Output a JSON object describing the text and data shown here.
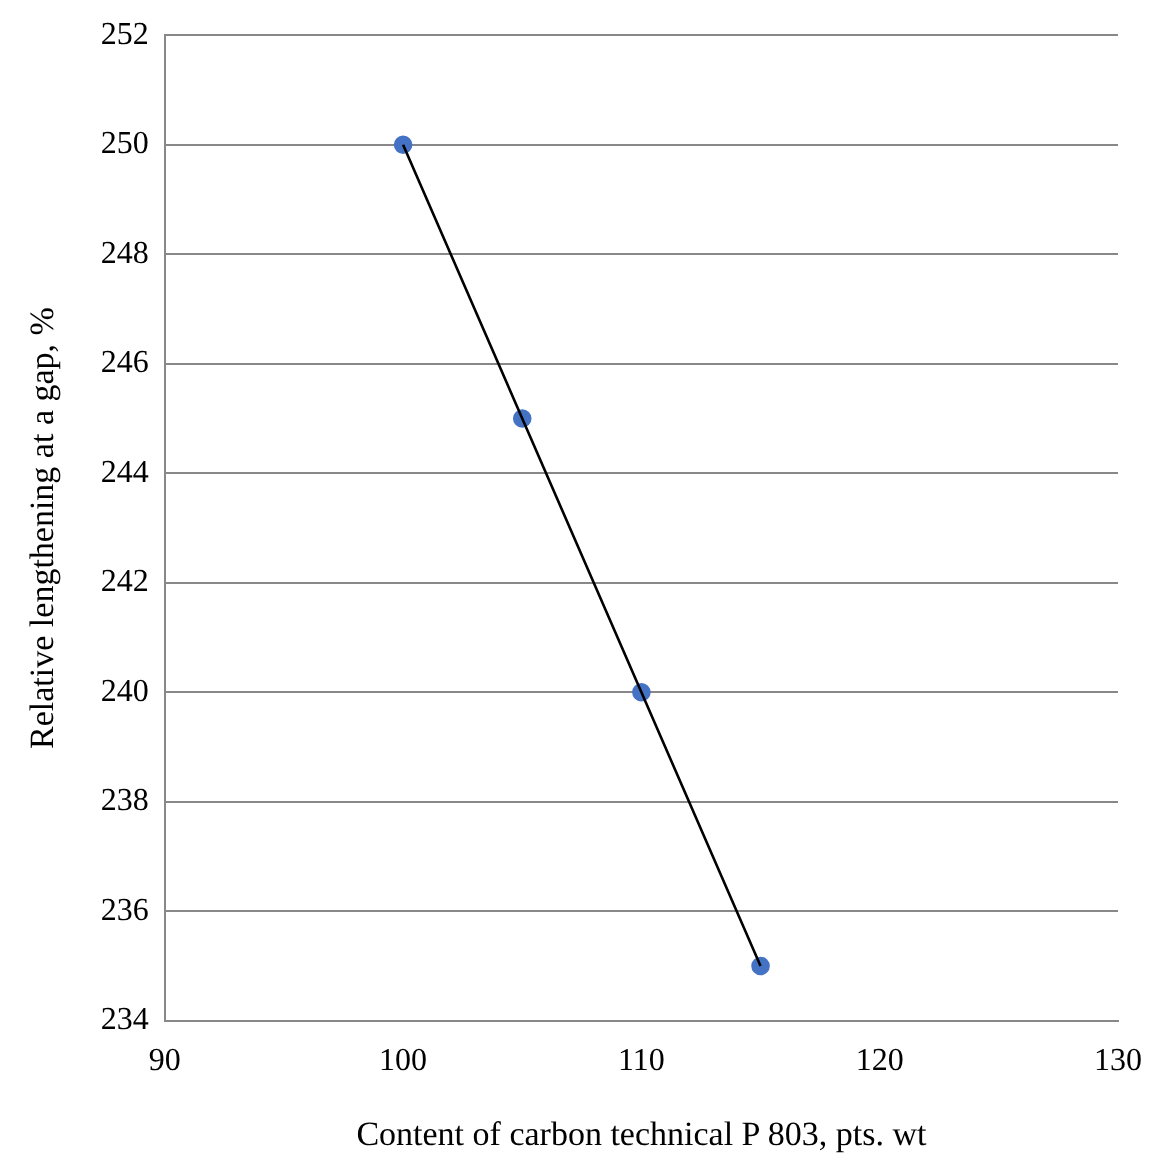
{
  "chart_data": {
    "type": "line",
    "xlabel": "Content of carbon technical P 803, pts. wt",
    "ylabel": "Relative lengthening at a gap, %",
    "x": [
      100,
      105,
      110,
      115
    ],
    "series": [
      {
        "type": "line",
        "color": "#000000",
        "values": [
          250,
          245,
          240,
          235
        ],
        "marker": "none"
      },
      {
        "type": "scatter",
        "color": "#4472c4",
        "values": [
          250,
          245,
          240,
          235
        ],
        "marker": "circle"
      }
    ],
    "xlim": [
      90,
      130
    ],
    "xticks": [
      90,
      100,
      110,
      120,
      130
    ],
    "ylim": [
      234,
      252
    ],
    "yticks": [
      234,
      236,
      238,
      240,
      242,
      244,
      246,
      248,
      250,
      252
    ],
    "grid": "y",
    "legend": false
  }
}
